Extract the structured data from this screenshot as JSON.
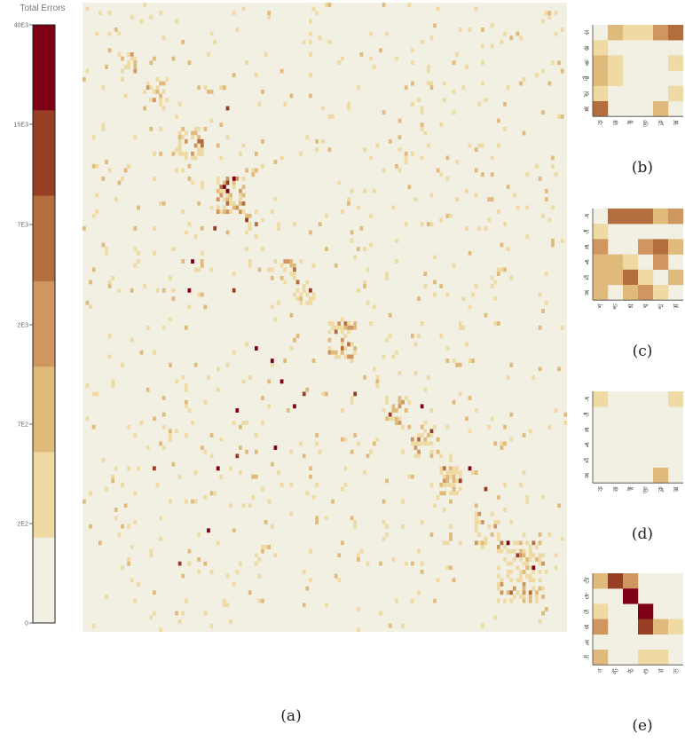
{
  "colorbar": {
    "title": "Total Errors",
    "tick_labels": [
      "40E3",
      "15E3",
      "7E3",
      "2E3",
      "7E2",
      "2E2",
      "0"
    ],
    "colors": [
      "#f2efe3",
      "#eedaa2",
      "#e0ba7a",
      "#cf9660",
      "#b46e3e",
      "#973e24",
      "#7e0014"
    ]
  },
  "chart_data": [
    {
      "panel": "(a)",
      "type": "heatmap",
      "n": 152,
      "background": "#f2efe3",
      "blocks": [
        [
          0.08,
          0.11
        ],
        [
          0.13,
          0.17
        ],
        [
          0.2,
          0.25
        ],
        [
          0.28,
          0.33
        ],
        [
          0.34,
          0.37
        ],
        [
          0.41,
          0.44
        ],
        [
          0.44,
          0.48
        ],
        [
          0.51,
          0.56
        ],
        [
          0.58,
          0.61
        ],
        [
          0.63,
          0.67
        ],
        [
          0.68,
          0.72
        ],
        [
          0.74,
          0.78
        ],
        [
          0.81,
          0.86
        ],
        [
          0.86,
          0.95
        ]
      ],
      "hotspots": [
        [
          0.3,
          0.17
        ],
        [
          0.31,
          0.28
        ],
        [
          0.3,
          0.3
        ],
        [
          0.27,
          0.36
        ],
        [
          0.23,
          0.41
        ],
        [
          0.22,
          0.46
        ],
        [
          0.31,
          0.46
        ],
        [
          0.36,
          0.55
        ],
        [
          0.41,
          0.6
        ],
        [
          0.46,
          0.62
        ],
        [
          0.39,
          0.57
        ],
        [
          0.32,
          0.65
        ],
        [
          0.32,
          0.72
        ],
        [
          0.4,
          0.71
        ],
        [
          0.44,
          0.64
        ],
        [
          0.56,
          0.62
        ],
        [
          0.7,
          0.64
        ],
        [
          0.8,
          0.74
        ],
        [
          0.83,
          0.77
        ],
        [
          0.88,
          0.86
        ],
        [
          0.93,
          0.9
        ],
        [
          0.15,
          0.74
        ],
        [
          0.28,
          0.74
        ],
        [
          0.26,
          0.84
        ],
        [
          0.2,
          0.89
        ]
      ]
    },
    {
      "panel": "(b)",
      "type": "heatmap",
      "row_labels": [
        "ক",
        "ক্ক",
        "ক্ট",
        "ক্ত",
        "ক্ল",
        "ক্স"
      ],
      "col_labels": [
        "ক",
        "ক্ক",
        "ক্ট",
        "ক্ত",
        "ক্ল",
        "ক্স"
      ],
      "levels": [
        [
          0,
          2,
          1,
          1,
          3,
          4
        ],
        [
          1,
          0,
          0,
          0,
          0,
          0
        ],
        [
          2,
          1,
          0,
          0,
          0,
          1
        ],
        [
          2,
          1,
          0,
          0,
          0,
          0
        ],
        [
          1,
          0,
          0,
          0,
          0,
          1
        ],
        [
          4,
          0,
          0,
          0,
          2,
          0
        ]
      ]
    },
    {
      "panel": "(c)",
      "type": "heatmap",
      "row_labels": [
        "শ",
        "শ্চ",
        "শ্ন",
        "শ্ব",
        "শ্ম",
        "শ্ল"
      ],
      "col_labels": [
        "শ",
        "শ্চ",
        "শ্ন",
        "শ্ব",
        "শ্ম",
        "শ্ল"
      ],
      "levels": [
        [
          0,
          4,
          4,
          4,
          2,
          3
        ],
        [
          1,
          0,
          0,
          0,
          0,
          0
        ],
        [
          3,
          0,
          0,
          3,
          4,
          2
        ],
        [
          2,
          2,
          1,
          0,
          3,
          0
        ],
        [
          2,
          2,
          4,
          1,
          0,
          2
        ],
        [
          2,
          0,
          2,
          3,
          1,
          0
        ]
      ]
    },
    {
      "panel": "(d)",
      "type": "heatmap",
      "row_labels": [
        "শ",
        "শ্চ",
        "শ্ন",
        "শ্ব",
        "শ্ম",
        "শ্ল"
      ],
      "col_labels": [
        "ক",
        "ক্ক",
        "ক্ট",
        "ক্ত",
        "ক্ল",
        "ক্স"
      ],
      "levels": [
        [
          1,
          0,
          0,
          0,
          0,
          1
        ],
        [
          0,
          0,
          0,
          0,
          0,
          0
        ],
        [
          0,
          0,
          0,
          0,
          0,
          0
        ],
        [
          0,
          0,
          0,
          0,
          0,
          0
        ],
        [
          0,
          0,
          0,
          0,
          0,
          0
        ],
        [
          0,
          0,
          0,
          0,
          2,
          0
        ]
      ]
    },
    {
      "panel": "(e)",
      "type": "heatmap",
      "row_labels": [
        "ন্ট",
        "ন্ঠ",
        "ন্ড",
        "ন্ত",
        "ন্থ",
        "ন্দ"
      ],
      "col_labels": [
        "ণ",
        "ণ্ট",
        "ণ্ঠ",
        "ণ্ড",
        "ণ্ণ",
        "ত"
      ],
      "levels": [
        [
          2,
          5,
          3,
          0,
          0,
          0
        ],
        [
          0,
          0,
          6,
          0,
          0,
          0
        ],
        [
          1,
          0,
          0,
          6,
          0,
          0
        ],
        [
          3,
          0,
          0,
          5,
          2,
          1
        ],
        [
          0,
          0,
          0,
          0,
          0,
          0
        ],
        [
          2,
          0,
          0,
          1,
          1,
          0
        ]
      ]
    }
  ]
}
